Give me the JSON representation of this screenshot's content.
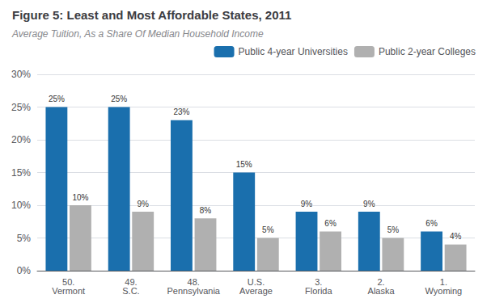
{
  "chart_data": {
    "type": "bar",
    "title": "Figure 5: Least and Most Affordable States, 2011",
    "subtitle": "Average Tuition, As a Share Of Median Household Income",
    "categories": [
      "50.\nVermont",
      "49.\nS.C.",
      "48.\nPennsylvania",
      "U.S.\nAverage",
      "3.\nFlorida",
      "2.\nAlaska",
      "1.\nWyoming"
    ],
    "series": [
      {
        "name": "Public 4-year Universities",
        "color": "#1a6fad",
        "values": [
          25,
          25,
          23,
          15,
          9,
          9,
          6
        ],
        "value_labels": [
          "25%",
          "25%",
          "23%",
          "15%",
          "9%",
          "9%",
          "6%"
        ]
      },
      {
        "name": "Public 2-year Colleges",
        "color": "#b0b0b0",
        "values": [
          10,
          9,
          8,
          5,
          6,
          5,
          4
        ],
        "value_labels": [
          "10%",
          "9%",
          "8%",
          "5%",
          "6%",
          "5%",
          "4%"
        ]
      }
    ],
    "ylim": [
      0,
      30
    ],
    "yticks": [
      {
        "value": 0,
        "label": "0%"
      },
      {
        "value": 5,
        "label": "5%"
      },
      {
        "value": 10,
        "label": "10%"
      },
      {
        "value": 15,
        "label": "15%"
      },
      {
        "value": 20,
        "label": "20%"
      },
      {
        "value": 25,
        "label": "25%"
      },
      {
        "value": 30,
        "label": "30%"
      }
    ],
    "grid": true,
    "legend": "upper right",
    "data_labels": true
  }
}
